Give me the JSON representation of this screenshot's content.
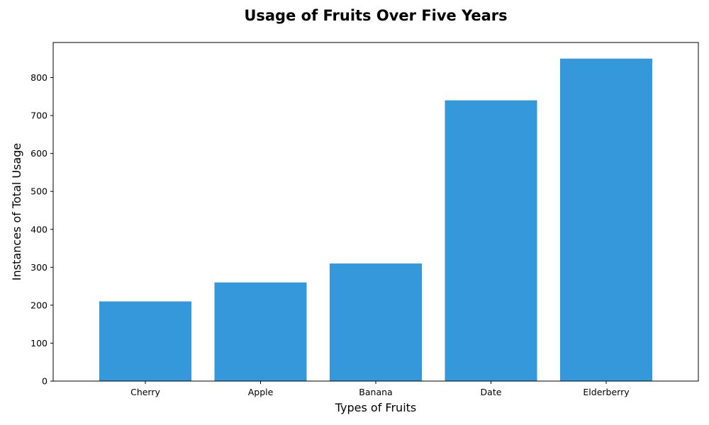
{
  "chart_data": {
    "type": "bar",
    "title": "Usage of Fruits Over Five Years",
    "xlabel": "Types of Fruits",
    "ylabel": "Instances of Total Usage",
    "categories": [
      "Cherry",
      "Apple",
      "Banana",
      "Date",
      "Elderberry"
    ],
    "values": [
      210,
      260,
      310,
      740,
      850
    ],
    "ylim": [
      0,
      892.5
    ],
    "yticks": [
      0,
      100,
      200,
      300,
      400,
      500,
      600,
      700,
      800
    ],
    "grid": false,
    "bar_color": "#3498db"
  }
}
